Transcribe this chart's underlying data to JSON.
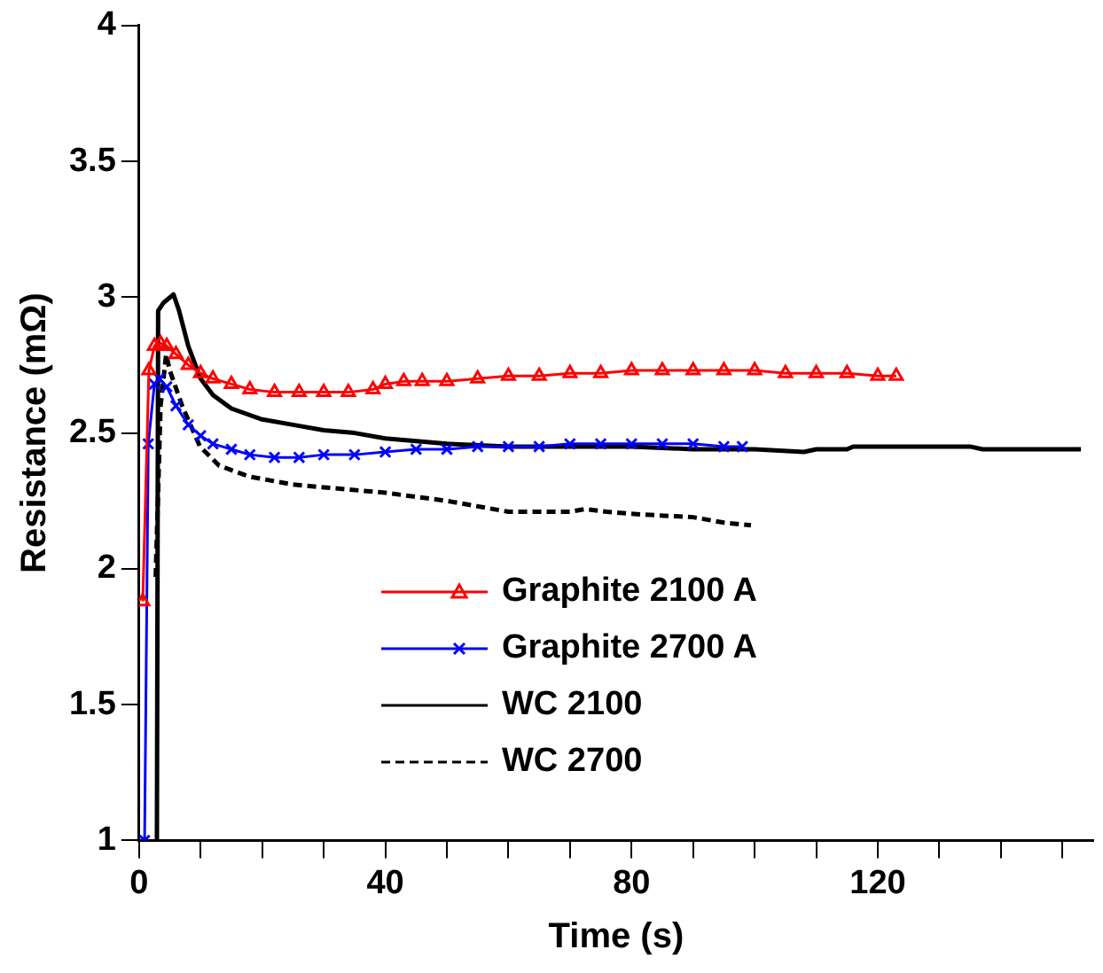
{
  "chart_data": {
    "type": "line",
    "xlabel": "Time (s)",
    "ylabel": "Resistance (mΩ)",
    "xlim": [
      0,
      155
    ],
    "xticks": [
      0,
      {
        "value": 10,
        "label": null
      },
      {
        "value": 20,
        "label": null
      },
      {
        "value": 30,
        "label": null
      },
      40,
      {
        "value": 50,
        "label": null
      },
      {
        "value": 60,
        "label": null
      },
      {
        "value": 70,
        "label": null
      },
      80,
      {
        "value": 90,
        "label": null
      },
      {
        "value": 100,
        "label": null
      },
      {
        "value": 110,
        "label": null
      },
      120,
      {
        "value": 130,
        "label": null
      },
      {
        "value": 140,
        "label": null
      },
      {
        "value": 150,
        "label": null
      }
    ],
    "ylim": [
      1,
      4
    ],
    "yticks": [
      1,
      1.5,
      2,
      2.5,
      3,
      3.5,
      4
    ],
    "grid": false,
    "legend": "bottom",
    "series": [
      {
        "name": "Graphite 2100 A",
        "color": "#ff0000",
        "marker": "triangle",
        "line_style": "solid",
        "x": [
          0.6,
          1.6,
          2.5,
          3.5,
          4.5,
          6,
          8,
          10,
          12,
          15,
          18,
          22,
          26,
          30,
          34,
          38,
          40,
          43,
          46,
          50,
          55,
          60,
          65,
          70,
          75,
          80,
          85,
          90,
          95,
          100,
          105,
          110,
          115,
          120,
          123
        ],
        "values": [
          1.88,
          2.73,
          2.82,
          2.83,
          2.82,
          2.79,
          2.75,
          2.72,
          2.7,
          2.68,
          2.66,
          2.65,
          2.65,
          2.65,
          2.65,
          2.66,
          2.68,
          2.69,
          2.69,
          2.69,
          2.7,
          2.71,
          2.71,
          2.72,
          2.72,
          2.73,
          2.73,
          2.73,
          2.73,
          2.73,
          2.72,
          2.72,
          2.72,
          2.71,
          2.71
        ]
      },
      {
        "name": "Graphite 2700 A",
        "color": "#0000ff",
        "marker": "cross",
        "line_style": "solid",
        "x": [
          0.9,
          1.5,
          2.5,
          3.3,
          4.5,
          6,
          8,
          10,
          12,
          15,
          18,
          22,
          26,
          30,
          35,
          40,
          45,
          50,
          55,
          60,
          65,
          70,
          75,
          80,
          85,
          90,
          95,
          98
        ],
        "values": [
          1.0,
          2.46,
          2.68,
          2.7,
          2.67,
          2.6,
          2.53,
          2.49,
          2.46,
          2.44,
          2.42,
          2.41,
          2.41,
          2.42,
          2.42,
          2.43,
          2.44,
          2.44,
          2.45,
          2.45,
          2.45,
          2.46,
          2.46,
          2.46,
          2.46,
          2.46,
          2.45,
          2.45
        ]
      },
      {
        "name": "WC 2100",
        "color": "#000000",
        "marker": "none",
        "line_style": "solid",
        "x": [
          2.9,
          3.1,
          4,
          5.6,
          6.5,
          8,
          10,
          12,
          15,
          20,
          25,
          30,
          35,
          40,
          45,
          50,
          60,
          70,
          80,
          90,
          100,
          108,
          110,
          115,
          116,
          120,
          135,
          137,
          140,
          142,
          153
        ],
        "values": [
          1.0,
          2.95,
          2.98,
          3.01,
          2.95,
          2.82,
          2.7,
          2.64,
          2.59,
          2.55,
          2.53,
          2.51,
          2.5,
          2.48,
          2.47,
          2.46,
          2.45,
          2.45,
          2.45,
          2.44,
          2.44,
          2.43,
          2.44,
          2.44,
          2.45,
          2.45,
          2.45,
          2.44,
          2.44,
          2.44,
          2.44
        ]
      },
      {
        "name": "WC 2700",
        "color": "#000000",
        "marker": "none",
        "line_style": "dashed",
        "x": [
          2.7,
          3.5,
          4.4,
          5,
          7,
          9.9,
          13,
          17.8,
          25,
          30,
          40,
          50,
          55,
          60,
          70,
          72.5,
          76,
          81.5,
          90,
          95,
          99.4
        ],
        "values": [
          1.97,
          2.6,
          2.79,
          2.73,
          2.6,
          2.45,
          2.38,
          2.34,
          2.31,
          2.3,
          2.28,
          2.25,
          2.23,
          2.21,
          2.21,
          2.22,
          2.21,
          2.2,
          2.19,
          2.17,
          2.16
        ]
      }
    ]
  }
}
